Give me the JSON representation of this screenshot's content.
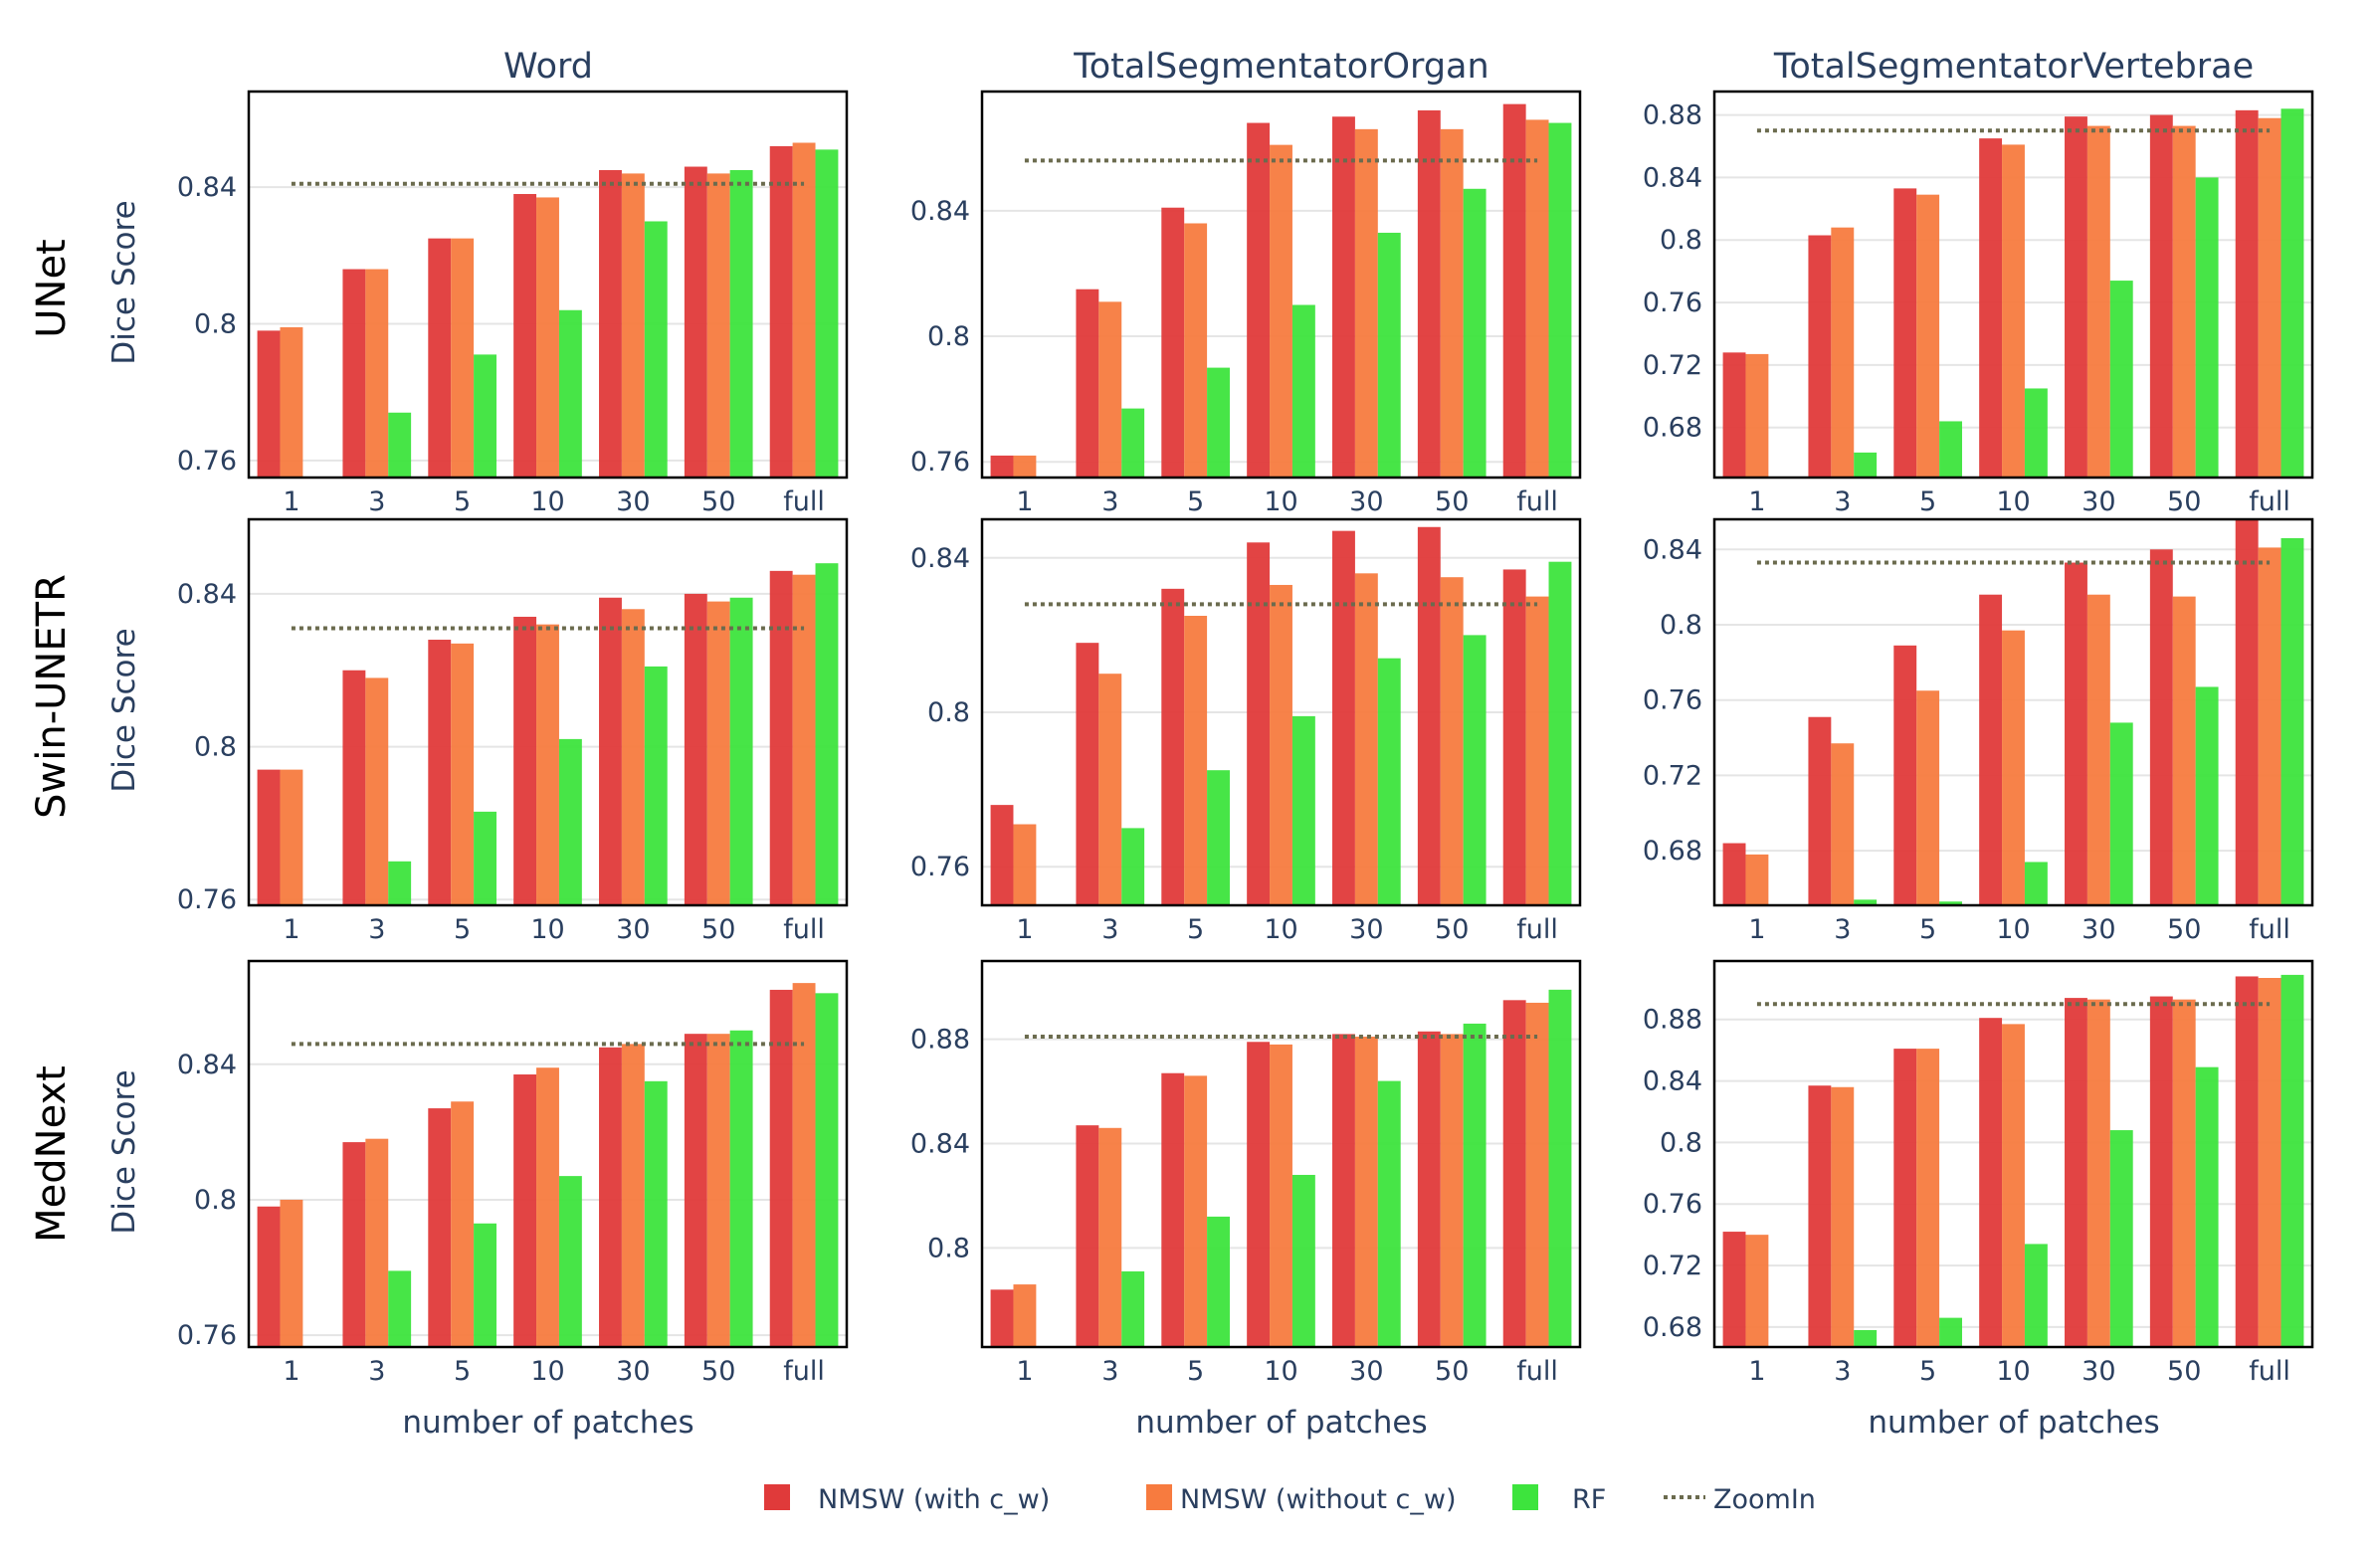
{
  "colors": {
    "NMSW (with c_w)": "#e03a3a",
    "NMSW (without c_w)": "#f77b3f",
    "RF": "#3de43d",
    "ZoomIn": "#6b6b4e",
    "axis_text": "#2a3f5f",
    "grid": "#e5e5e5"
  },
  "column_titles": [
    "Word",
    "TotalSegmentatorOrgan",
    "TotalSegmentatorVertebrae"
  ],
  "row_labels": [
    "UNet",
    "Swin-UNETR",
    "MedNext"
  ],
  "y_axis_title": "Dice Score",
  "x_axis_title": "number of patches",
  "legend": [
    {
      "name": "NMSW (with c_w)",
      "kind": "bar"
    },
    {
      "name": "NMSW (without c_w)",
      "kind": "bar"
    },
    {
      "name": "RF",
      "kind": "bar"
    },
    {
      "name": "ZoomIn",
      "kind": "dotted-line"
    }
  ],
  "chart_data": [
    {
      "type": "bar",
      "row": "UNet",
      "title": "Word",
      "categories": [
        "1",
        "3",
        "5",
        "10",
        "30",
        "50",
        "full"
      ],
      "ylim": [
        0.755,
        0.868
      ],
      "yticks": [
        0.76,
        0.8,
        0.84
      ],
      "ytick_labels": [
        "0.76",
        "0.8",
        "0.84"
      ],
      "series": [
        {
          "name": "NMSW (with c_w)",
          "values": [
            0.798,
            0.816,
            0.825,
            0.838,
            0.845,
            0.846,
            0.852
          ]
        },
        {
          "name": "NMSW (without c_w)",
          "values": [
            0.799,
            0.816,
            0.825,
            0.837,
            0.844,
            0.844,
            0.853
          ]
        },
        {
          "name": "RF",
          "values": [
            null,
            0.774,
            0.791,
            0.804,
            0.83,
            0.845,
            0.851
          ]
        }
      ],
      "zoomin": 0.841
    },
    {
      "type": "bar",
      "row": "UNet",
      "title": "TotalSegmentatorOrgan",
      "categories": [
        "1",
        "3",
        "5",
        "10",
        "30",
        "50",
        "full"
      ],
      "ylim": [
        0.755,
        0.878
      ],
      "yticks": [
        0.76,
        0.8,
        0.84
      ],
      "ytick_labels": [
        "0.76",
        "0.8",
        "0.84"
      ],
      "series": [
        {
          "name": "NMSW (with c_w)",
          "values": [
            0.762,
            0.815,
            0.841,
            0.868,
            0.87,
            0.872,
            0.874
          ]
        },
        {
          "name": "NMSW (without c_w)",
          "values": [
            0.762,
            0.811,
            0.836,
            0.861,
            0.866,
            0.866,
            0.869
          ]
        },
        {
          "name": "RF",
          "values": [
            null,
            0.777,
            0.79,
            0.81,
            0.833,
            0.847,
            0.868
          ]
        }
      ],
      "zoomin": 0.856
    },
    {
      "type": "bar",
      "row": "UNet",
      "title": "TotalSegmentatorVertebrae",
      "categories": [
        "1",
        "3",
        "5",
        "10",
        "30",
        "50",
        "full"
      ],
      "ylim": [
        0.648,
        0.895
      ],
      "yticks": [
        0.68,
        0.72,
        0.76,
        0.8,
        0.84,
        0.88
      ],
      "ytick_labels": [
        "0.68",
        "0.72",
        "0.76",
        "0.8",
        "0.84",
        "0.88"
      ],
      "series": [
        {
          "name": "NMSW (with c_w)",
          "values": [
            0.728,
            0.803,
            0.833,
            0.865,
            0.879,
            0.88,
            0.883
          ]
        },
        {
          "name": "NMSW (without c_w)",
          "values": [
            0.727,
            0.808,
            0.829,
            0.861,
            0.873,
            0.873,
            0.878
          ]
        },
        {
          "name": "RF",
          "values": [
            null,
            0.664,
            0.684,
            0.705,
            0.774,
            0.84,
            0.884
          ]
        }
      ],
      "zoomin": 0.87
    },
    {
      "type": "bar",
      "row": "Swin-UNETR",
      "title": "Word",
      "categories": [
        "1",
        "3",
        "5",
        "10",
        "30",
        "50",
        "full"
      ],
      "ylim": [
        0.7585,
        0.8595
      ],
      "yticks": [
        0.76,
        0.8,
        0.84
      ],
      "ytick_labels": [
        "0.76",
        "0.8",
        "0.84"
      ],
      "series": [
        {
          "name": "NMSW (with c_w)",
          "values": [
            0.794,
            0.82,
            0.828,
            0.834,
            0.839,
            0.84,
            0.846
          ]
        },
        {
          "name": "NMSW (without c_w)",
          "values": [
            0.794,
            0.818,
            0.827,
            0.832,
            0.836,
            0.838,
            0.845
          ]
        },
        {
          "name": "RF",
          "values": [
            null,
            0.77,
            0.783,
            0.802,
            0.821,
            0.839,
            0.848
          ]
        }
      ],
      "zoomin": 0.831
    },
    {
      "type": "bar",
      "row": "Swin-UNETR",
      "title": "TotalSegmentatorOrgan",
      "categories": [
        "1",
        "3",
        "5",
        "10",
        "30",
        "50",
        "full"
      ],
      "ylim": [
        0.75,
        0.85
      ],
      "yticks": [
        0.76,
        0.8,
        0.84
      ],
      "ytick_labels": [
        "0.76",
        "0.8",
        "0.84"
      ],
      "series": [
        {
          "name": "NMSW (with c_w)",
          "values": [
            0.776,
            0.818,
            0.832,
            0.844,
            0.847,
            0.848,
            0.837
          ]
        },
        {
          "name": "NMSW (without c_w)",
          "values": [
            0.771,
            0.81,
            0.825,
            0.833,
            0.836,
            0.835,
            0.83
          ]
        },
        {
          "name": "RF",
          "values": [
            null,
            0.77,
            0.785,
            0.799,
            0.814,
            0.82,
            0.839
          ]
        }
      ],
      "zoomin": 0.828
    },
    {
      "type": "bar",
      "row": "Swin-UNETR",
      "title": "TotalSegmentatorVertebrae",
      "categories": [
        "1",
        "3",
        "5",
        "10",
        "30",
        "50",
        "full"
      ],
      "ylim": [
        0.651,
        0.856
      ],
      "yticks": [
        0.68,
        0.72,
        0.76,
        0.8,
        0.84
      ],
      "ytick_labels": [
        "0.68",
        "0.72",
        "0.76",
        "0.8",
        "0.84"
      ],
      "series": [
        {
          "name": "NMSW (with c_w)",
          "values": [
            0.684,
            0.751,
            0.789,
            0.816,
            0.833,
            0.84,
            0.856
          ]
        },
        {
          "name": "NMSW (without c_w)",
          "values": [
            0.678,
            0.737,
            0.765,
            0.797,
            0.816,
            0.815,
            0.841
          ]
        },
        {
          "name": "RF",
          "values": [
            null,
            0.654,
            0.653,
            0.674,
            0.748,
            0.767,
            0.846
          ]
        }
      ],
      "zoomin": 0.833
    },
    {
      "type": "bar",
      "row": "MedNext",
      "title": "Word",
      "categories": [
        "1",
        "3",
        "5",
        "10",
        "30",
        "50",
        "full"
      ],
      "ylim": [
        0.7565,
        0.8705
      ],
      "yticks": [
        0.76,
        0.8,
        0.84
      ],
      "ytick_labels": [
        "0.76",
        "0.8",
        "0.84"
      ],
      "series": [
        {
          "name": "NMSW (with c_w)",
          "values": [
            0.798,
            0.817,
            0.827,
            0.837,
            0.845,
            0.849,
            0.862
          ]
        },
        {
          "name": "NMSW (without c_w)",
          "values": [
            0.8,
            0.818,
            0.829,
            0.839,
            0.846,
            0.849,
            0.864
          ]
        },
        {
          "name": "RF",
          "values": [
            null,
            0.779,
            0.793,
            0.807,
            0.835,
            0.85,
            0.861
          ]
        }
      ],
      "zoomin": 0.846
    },
    {
      "type": "bar",
      "row": "MedNext",
      "title": "TotalSegmentatorOrgan",
      "categories": [
        "1",
        "3",
        "5",
        "10",
        "30",
        "50",
        "full"
      ],
      "ylim": [
        0.762,
        0.91
      ],
      "yticks": [
        0.8,
        0.84,
        0.88
      ],
      "ytick_labels": [
        "0.8",
        "0.84",
        "0.88"
      ],
      "series": [
        {
          "name": "NMSW (with c_w)",
          "values": [
            0.784,
            0.847,
            0.867,
            0.879,
            0.882,
            0.883,
            0.895
          ]
        },
        {
          "name": "NMSW (without c_w)",
          "values": [
            0.786,
            0.846,
            0.866,
            0.878,
            0.881,
            0.882,
            0.894
          ]
        },
        {
          "name": "RF",
          "values": [
            null,
            0.791,
            0.812,
            0.828,
            0.864,
            0.886,
            0.899
          ]
        }
      ],
      "zoomin": 0.881
    },
    {
      "type": "bar",
      "row": "MedNext",
      "title": "TotalSegmentatorVertebrae",
      "categories": [
        "1",
        "3",
        "5",
        "10",
        "30",
        "50",
        "full"
      ],
      "ylim": [
        0.667,
        0.918
      ],
      "yticks": [
        0.68,
        0.72,
        0.76,
        0.8,
        0.84,
        0.88
      ],
      "ytick_labels": [
        "0.68",
        "0.72",
        "0.76",
        "0.8",
        "0.84",
        "0.88"
      ],
      "series": [
        {
          "name": "NMSW (with c_w)",
          "values": [
            0.742,
            0.837,
            0.861,
            0.881,
            0.894,
            0.895,
            0.908
          ]
        },
        {
          "name": "NMSW (without c_w)",
          "values": [
            0.74,
            0.836,
            0.861,
            0.877,
            0.893,
            0.893,
            0.907
          ]
        },
        {
          "name": "RF",
          "values": [
            null,
            0.678,
            0.686,
            0.734,
            0.808,
            0.849,
            0.909
          ]
        }
      ],
      "zoomin": 0.89
    }
  ]
}
